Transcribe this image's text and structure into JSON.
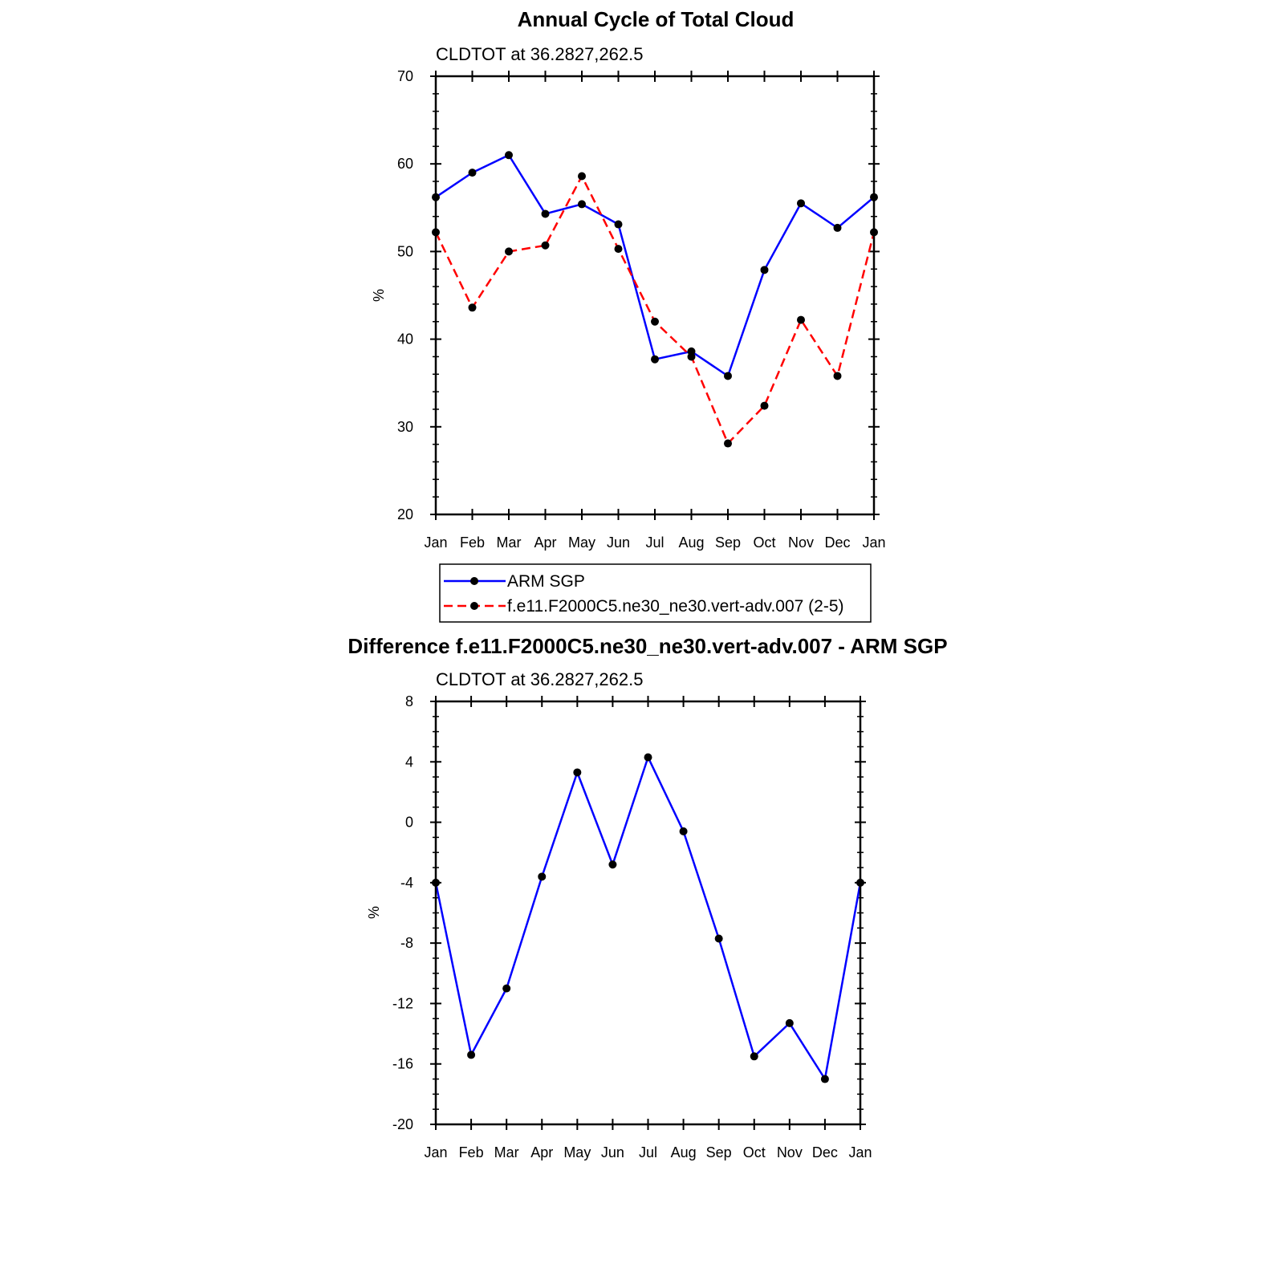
{
  "chart_data": [
    {
      "type": "line",
      "title": "Annual Cycle of Total Cloud",
      "subtitle": "CLDTOT at 36.2827,262.5",
      "ylabel": "%",
      "xlabel": "",
      "ylim": [
        20,
        70
      ],
      "yticks": [
        20,
        30,
        40,
        50,
        60,
        70
      ],
      "categories": [
        "Jan",
        "Feb",
        "Mar",
        "Apr",
        "May",
        "Jun",
        "Jul",
        "Aug",
        "Sep",
        "Oct",
        "Nov",
        "Dec",
        "Jan"
      ],
      "grid": false,
      "legend_position": "bottom",
      "series": [
        {
          "name": "ARM SGP",
          "color": "#0000ff",
          "style": "solid",
          "marker": "dot",
          "values": [
            56.2,
            59.0,
            61.0,
            54.3,
            55.4,
            53.1,
            37.7,
            38.6,
            35.8,
            47.9,
            55.5,
            52.7,
            56.2
          ]
        },
        {
          "name": "f.e11.F2000C5.ne30_ne30.vert-adv.007 (2-5)",
          "color": "#ff0000",
          "style": "dashed",
          "marker": "dot",
          "values": [
            52.2,
            43.6,
            50.0,
            50.7,
            58.6,
            50.3,
            42.0,
            38.0,
            28.1,
            32.4,
            42.2,
            35.8,
            52.2
          ]
        }
      ]
    },
    {
      "type": "line",
      "title": "Difference f.e11.F2000C5.ne30_ne30.vert-adv.007 - ARM SGP",
      "subtitle": "CLDTOT at 36.2827,262.5",
      "ylabel": "%",
      "xlabel": "",
      "ylim": [
        -20,
        8
      ],
      "yticks": [
        -20,
        -16,
        -12,
        -8,
        -4,
        0,
        4,
        8
      ],
      "categories": [
        "Jan",
        "Feb",
        "Mar",
        "Apr",
        "May",
        "Jun",
        "Jul",
        "Aug",
        "Sep",
        "Oct",
        "Nov",
        "Dec",
        "Jan"
      ],
      "grid": false,
      "series": [
        {
          "color": "#0000ff",
          "style": "solid",
          "marker": "dot",
          "values": [
            -4.0,
            -15.4,
            -11.0,
            -3.6,
            3.3,
            -2.8,
            4.3,
            -0.6,
            -7.7,
            -15.5,
            -13.3,
            -17.0,
            -4.0
          ]
        }
      ]
    }
  ]
}
